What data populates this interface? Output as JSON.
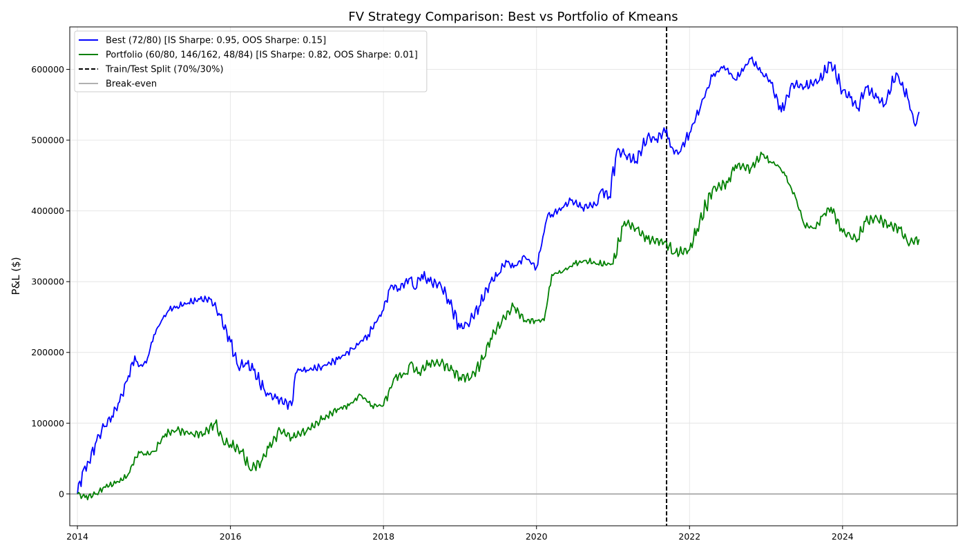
{
  "chart_data": {
    "type": "line",
    "title": "FV Strategy Comparison: Best vs Portfolio of Kmeans",
    "xlabel": "",
    "ylabel": "P&L ($)",
    "xlim": [
      2013.9,
      2025.5
    ],
    "ylim": [
      -45000,
      660000
    ],
    "x_ticks": [
      2014,
      2016,
      2018,
      2020,
      2022,
      2024
    ],
    "x_tick_labels": [
      "2014",
      "2016",
      "2018",
      "2020",
      "2022",
      "2024"
    ],
    "y_ticks": [
      0,
      100000,
      200000,
      300000,
      400000,
      500000,
      600000
    ],
    "y_tick_labels": [
      "0",
      "100000",
      "200000",
      "300000",
      "400000",
      "500000",
      "600000"
    ],
    "grid": true,
    "legend_position": "top-left",
    "split_x": 2021.7,
    "split_label": "Train/Test Split (70%/30%)",
    "breakeven_y": 0,
    "breakeven_label": "Break-even",
    "series": [
      {
        "name": "Best (72/80) [IS Sharpe: 0.95, OOS Sharpe: 0.15]",
        "color": "#0000ff",
        "x": [
          2014.0,
          2014.08,
          2014.15,
          2014.25,
          2014.35,
          2014.45,
          2014.55,
          2014.65,
          2014.75,
          2014.8,
          2014.9,
          2015.0,
          2015.1,
          2015.2,
          2015.3,
          2015.45,
          2015.6,
          2015.75,
          2015.85,
          2016.0,
          2016.1,
          2016.2,
          2016.3,
          2016.45,
          2016.5,
          2016.6,
          2016.8,
          2016.85,
          2016.9,
          2017.0,
          2017.2,
          2017.4,
          2017.6,
          2017.8,
          2018.0,
          2018.1,
          2018.2,
          2018.35,
          2018.4,
          2018.5,
          2018.6,
          2018.75,
          2018.85,
          2019.0,
          2019.1,
          2019.25,
          2019.4,
          2019.5,
          2019.6,
          2019.7,
          2019.85,
          2020.0,
          2020.1,
          2020.15,
          2020.2,
          2020.35,
          2020.45,
          2020.6,
          2020.8,
          2020.85,
          2020.95,
          2021.05,
          2021.15,
          2021.3,
          2021.45,
          2021.55,
          2021.7,
          2021.75,
          2021.85,
          2022.0,
          2022.15,
          2022.3,
          2022.45,
          2022.6,
          2022.8,
          2022.95,
          2023.05,
          2023.2,
          2023.35,
          2023.5,
          2023.7,
          2023.85,
          2024.0,
          2024.1,
          2024.2,
          2024.3,
          2024.45,
          2024.55,
          2024.7,
          2024.85,
          2024.95,
          2025.0
        ],
        "values": [
          0,
          35000,
          45000,
          75000,
          95000,
          110000,
          130000,
          160000,
          195000,
          180000,
          185000,
          225000,
          245000,
          260000,
          265000,
          270000,
          275000,
          275000,
          255000,
          215000,
          180000,
          185000,
          175000,
          145000,
          140000,
          135000,
          125000,
          170000,
          175000,
          175000,
          180000,
          190000,
          205000,
          225000,
          260000,
          295000,
          290000,
          305000,
          290000,
          310000,
          300000,
          295000,
          275000,
          235000,
          240000,
          265000,
          300000,
          310000,
          330000,
          320000,
          335000,
          320000,
          370000,
          395000,
          395000,
          405000,
          415000,
          405000,
          410000,
          430000,
          420000,
          485000,
          480000,
          470000,
          505000,
          500000,
          515000,
          490000,
          480000,
          510000,
          550000,
          590000,
          605000,
          585000,
          615000,
          595000,
          585000,
          540000,
          580000,
          575000,
          585000,
          610000,
          570000,
          560000,
          545000,
          575000,
          560000,
          550000,
          595000,
          560000,
          520000,
          540000
        ]
      },
      {
        "name": "Portfolio (60/80, 146/162, 48/84) [IS Sharpe: 0.82, OOS Sharpe: 0.01]",
        "color": "#008000",
        "x": [
          2014.0,
          2014.1,
          2014.25,
          2014.35,
          2014.5,
          2014.65,
          2014.8,
          2014.9,
          2015.0,
          2015.15,
          2015.3,
          2015.5,
          2015.65,
          2015.8,
          2015.9,
          2016.0,
          2016.15,
          2016.25,
          2016.4,
          2016.5,
          2016.65,
          2016.8,
          2017.0,
          2017.2,
          2017.4,
          2017.55,
          2017.7,
          2017.85,
          2018.0,
          2018.15,
          2018.3,
          2018.35,
          2018.45,
          2018.6,
          2018.75,
          2018.9,
          2019.0,
          2019.15,
          2019.3,
          2019.4,
          2019.55,
          2019.7,
          2019.85,
          2020.0,
          2020.1,
          2020.2,
          2020.35,
          2020.5,
          2020.65,
          2020.8,
          2021.0,
          2021.15,
          2021.3,
          2021.45,
          2021.7,
          2021.8,
          2022.0,
          2022.1,
          2022.3,
          2022.5,
          2022.6,
          2022.8,
          2022.95,
          2023.05,
          2023.15,
          2023.25,
          2023.4,
          2023.5,
          2023.65,
          2023.75,
          2023.85,
          2024.0,
          2024.1,
          2024.2,
          2024.3,
          2024.45,
          2024.6,
          2024.75,
          2024.85,
          2025.0
        ],
        "values": [
          0,
          -5000,
          0,
          10000,
          15000,
          25000,
          60000,
          55000,
          60000,
          85000,
          90000,
          85000,
          85000,
          100000,
          75000,
          70000,
          60000,
          35000,
          45000,
          65000,
          90000,
          80000,
          90000,
          105000,
          120000,
          125000,
          140000,
          125000,
          125000,
          165000,
          170000,
          185000,
          170000,
          185000,
          185000,
          175000,
          165000,
          165000,
          190000,
          220000,
          245000,
          265000,
          245000,
          245000,
          245000,
          310000,
          315000,
          325000,
          330000,
          325000,
          325000,
          385000,
          375000,
          360000,
          355000,
          340000,
          345000,
          375000,
          430000,
          440000,
          465000,
          460000,
          480000,
          470000,
          465000,
          450000,
          415000,
          380000,
          375000,
          395000,
          405000,
          370000,
          365000,
          360000,
          385000,
          390000,
          380000,
          375000,
          355000,
          360000
        ]
      }
    ]
  }
}
